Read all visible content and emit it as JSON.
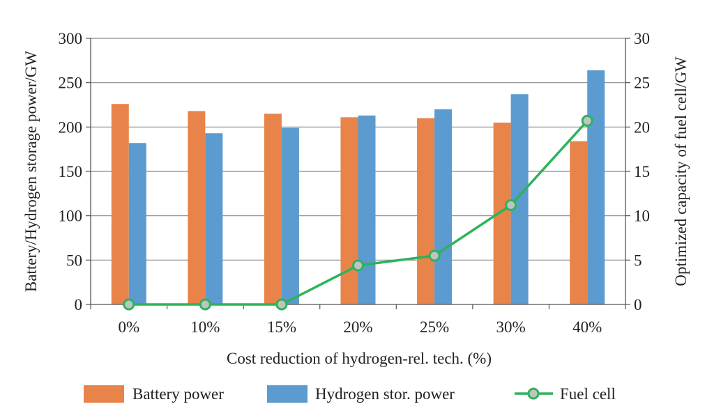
{
  "chart_data": {
    "type": "bar",
    "categories": [
      "0%",
      "10%",
      "15%",
      "20%",
      "25%",
      "30%",
      "40%"
    ],
    "xlabel": "Cost reduction of hydrogen-rel. tech. (%)",
    "ylabel_left": "Battery/Hydrogen storage power/GW",
    "ylabel_right": "Optimized capacity of fuel cell/GW",
    "ylim_left": [
      0,
      300
    ],
    "ylim_right": [
      0,
      30
    ],
    "yticks_left": [
      "0",
      "50",
      "100",
      "150",
      "200",
      "250",
      "300"
    ],
    "yticks_right": [
      "0",
      "5",
      "10",
      "15",
      "20",
      "25",
      "30"
    ],
    "grid": true,
    "legend_position": "bottom",
    "series": [
      {
        "name": "Battery power",
        "type": "bar",
        "axis": "left",
        "color": "#E8834A",
        "values": [
          226,
          218,
          215,
          211,
          210,
          205,
          184
        ]
      },
      {
        "name": "Hydrogen stor. power",
        "type": "bar",
        "axis": "left",
        "color": "#5B9BD0",
        "values": [
          182,
          193,
          199,
          213,
          220,
          237,
          264
        ]
      },
      {
        "name": "Fuel cell",
        "type": "line",
        "axis": "right",
        "color": "#2DB35A",
        "marker_fill": "#BFC3C4",
        "values": [
          0,
          0,
          0,
          4.4,
          5.5,
          11.2,
          20.7
        ]
      }
    ]
  }
}
